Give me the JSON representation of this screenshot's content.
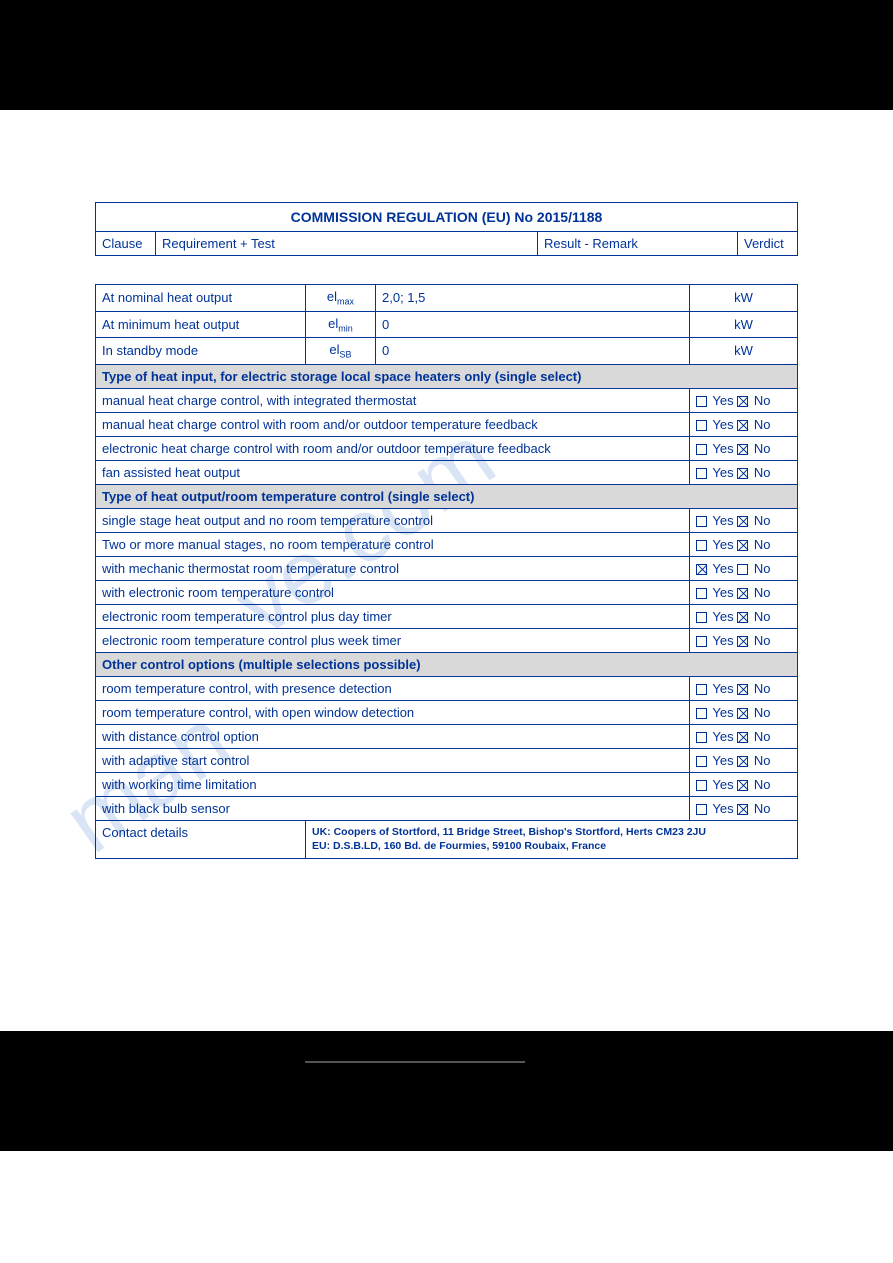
{
  "header": {
    "title": "COMMISSION REGULATION (EU) No 2015/1188",
    "col_clause": "Clause",
    "col_req": "Requirement + Test",
    "col_result": "Result - Remark",
    "col_verdict": "Verdict"
  },
  "data_rows": [
    {
      "label": "At nominal heat output",
      "symbol": "el",
      "sub": "max",
      "value": "2,0; 1,5",
      "unit": "kW"
    },
    {
      "label": "At minimum heat output",
      "symbol": "el",
      "sub": "min",
      "value": "0",
      "unit": "kW"
    },
    {
      "label": "In standby mode",
      "symbol": "el",
      "sub": "SB",
      "value": "0",
      "unit": "kW"
    }
  ],
  "section1": {
    "title": "Type of heat input, for electric storage local space heaters only (single select)",
    "rows": [
      {
        "label": "manual heat charge control, with integrated thermostat",
        "yes": false,
        "no": true
      },
      {
        "label": "manual heat charge control with room and/or outdoor temperature feedback",
        "yes": false,
        "no": true
      },
      {
        "label": "electronic heat charge control with room and/or outdoor temperature feedback",
        "yes": false,
        "no": true
      },
      {
        "label": "fan assisted heat output",
        "yes": false,
        "no": true
      }
    ]
  },
  "section2": {
    "title": "Type of heat output/room temperature control (single select)",
    "rows": [
      {
        "label": "single stage heat output and no room temperature control",
        "yes": false,
        "no": true
      },
      {
        "label": "Two or more manual stages, no room temperature control",
        "yes": false,
        "no": true
      },
      {
        "label": "with mechanic thermostat room temperature control",
        "yes": true,
        "no": false
      },
      {
        "label": "with electronic room temperature control",
        "yes": false,
        "no": true
      },
      {
        "label": "electronic room temperature control plus day timer",
        "yes": false,
        "no": true
      },
      {
        "label": "electronic room temperature control plus week timer",
        "yes": false,
        "no": true
      }
    ]
  },
  "section3": {
    "title": "Other control options (multiple selections possible)",
    "rows": [
      {
        "label": "room temperature control, with presence detection",
        "yes": false,
        "no": true
      },
      {
        "label": "room temperature control, with open window detection",
        "yes": false,
        "no": true
      },
      {
        "label": "with distance control option",
        "yes": false,
        "no": true
      },
      {
        "label": "with adaptive start control",
        "yes": false,
        "no": true
      },
      {
        "label": "with working time limitation",
        "yes": false,
        "no": true
      },
      {
        "label": "with black bulb sensor",
        "yes": false,
        "no": true
      }
    ]
  },
  "contact": {
    "label": "Contact details",
    "line1": "UK: Coopers of Stortford, 11 Bridge Street, Bishop's Stortford, Herts CM23 2JU",
    "line2": "EU: D.S.B.LD, 160 Bd. de Fourmies, 59100 Roubaix, France"
  },
  "yes_label": "Yes",
  "no_label": "No",
  "colors": {
    "text": "#003399",
    "border": "#003399",
    "section_bg": "#d9d9d9",
    "black": "#000000",
    "watermark": "rgba(120,160,220,0.28)"
  }
}
